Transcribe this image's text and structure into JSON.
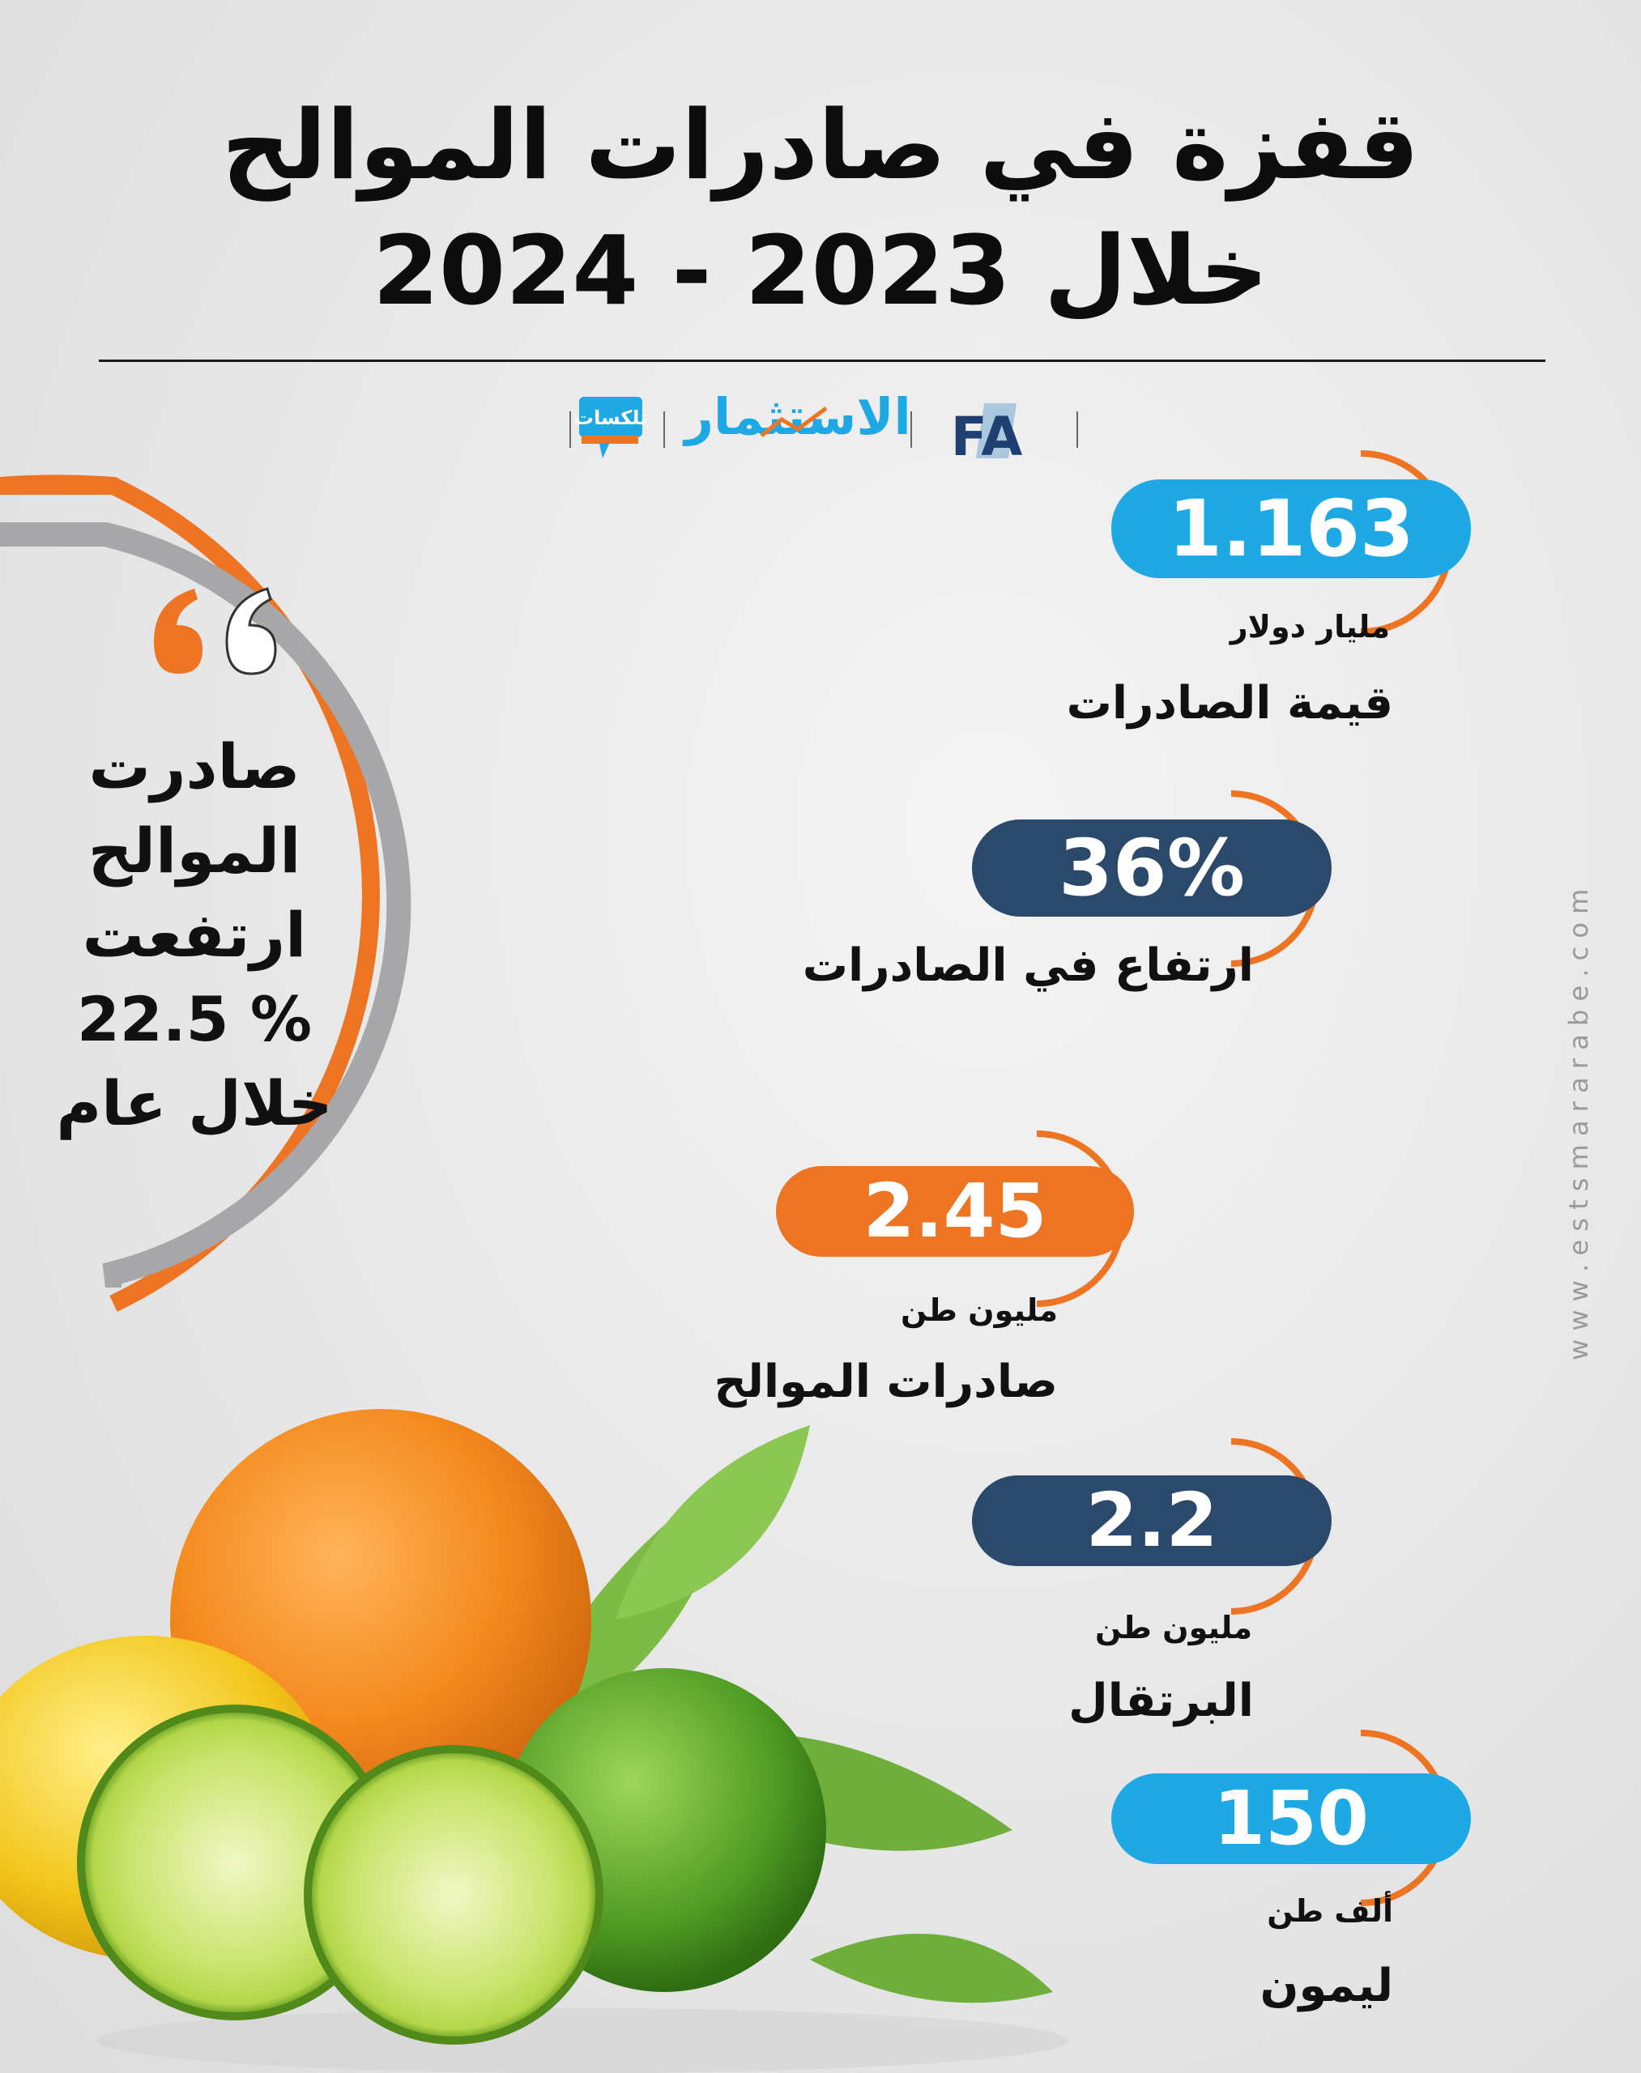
{
  "title": {
    "line1": "قفزة في صادرات الموالح",
    "line2": "خلال 2023 - 2024"
  },
  "logos": {
    "teleks": "تلكسات",
    "estsmar": "الاستثمار",
    "fa": "FA"
  },
  "colors": {
    "orange": "#ec7423",
    "blue": "#1ea9e5",
    "navy": "#2b4a6b",
    "grey": "#a7a7a9"
  },
  "quote": {
    "line1": "صادرت",
    "line2": "الموالح",
    "line3": "ارتفعت",
    "line4": "22.5 %",
    "line5": "خلال عام"
  },
  "stats": [
    {
      "value": "1.163",
      "unit": "مليار دولار",
      "name": "قيمة الصادرات"
    },
    {
      "value": "36%",
      "unit": "",
      "name": "ارتفاع في الصادرات"
    },
    {
      "value": "2.45",
      "unit": "مليون طن",
      "name": "صادرات الموالح"
    },
    {
      "value": "2.2",
      "unit": "مليون طن",
      "name": "البرتقال"
    },
    {
      "value": "150",
      "unit": "ألف طن",
      "name": "ليمون"
    }
  ],
  "watermark": "w w w . e s t s m a r a r a b e . c o m"
}
